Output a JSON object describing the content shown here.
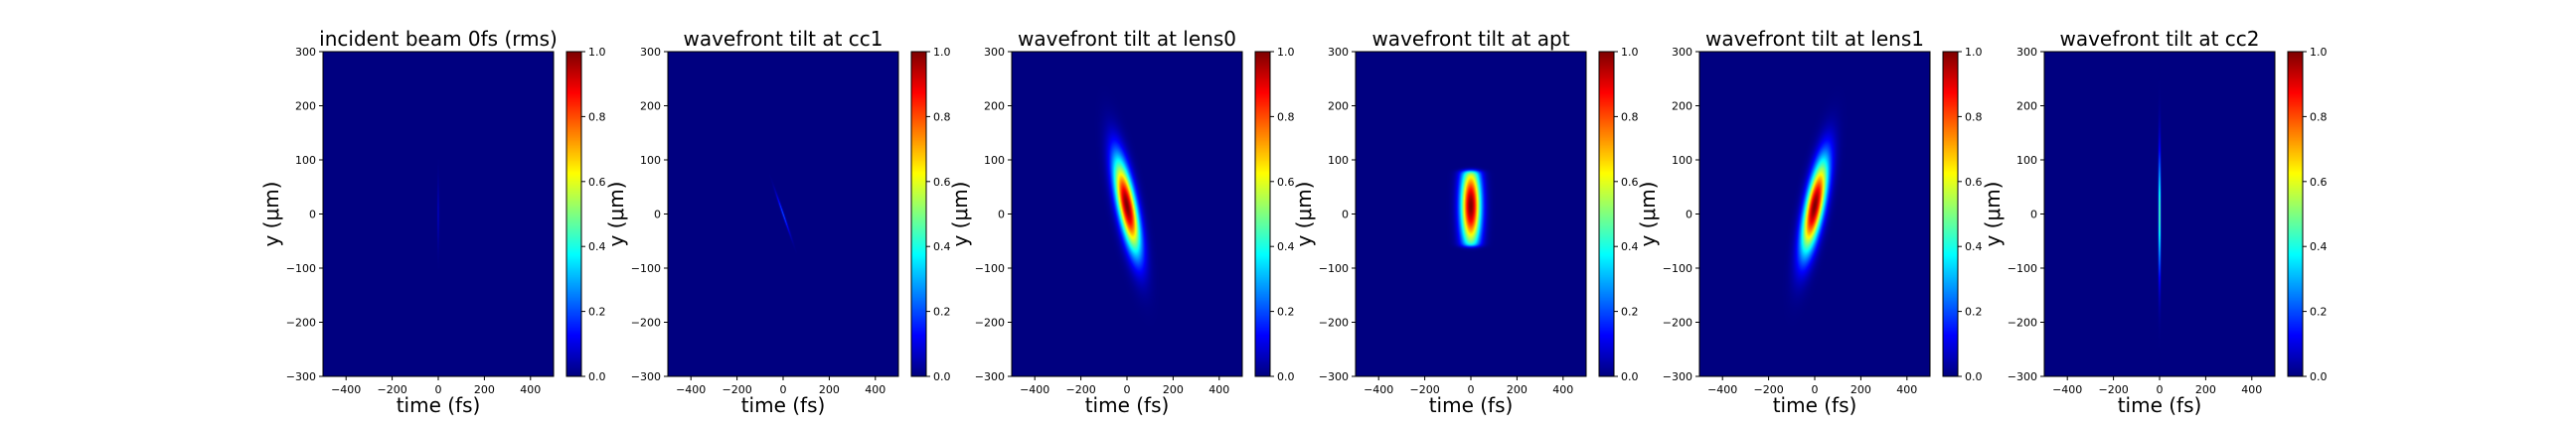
{
  "chart_data": [
    {
      "type": "heatmap",
      "title": "incident beam 0fs (rms)",
      "xlabel": "time (fs)",
      "ylabel": "y (μm)",
      "xlim": [
        -500,
        500
      ],
      "ylim": [
        -300,
        300
      ],
      "xticks": [
        -400,
        -200,
        0,
        200,
        400
      ],
      "yticks": [
        -300,
        -200,
        -100,
        0,
        100,
        200,
        300
      ],
      "colorbar": {
        "range": [
          0,
          1
        ],
        "ticks": [
          0.0,
          0.2,
          0.4,
          0.6,
          0.8,
          1.0
        ],
        "colormap": "jet"
      },
      "beam": {
        "center_t": 0,
        "center_y": 0,
        "sigma_t": 1.5,
        "sigma_y": 40,
        "tilt_fs_per_um": 0,
        "peak": 0.14
      }
    },
    {
      "type": "heatmap",
      "title": "wavefront tilt at cc1",
      "xlabel": "time (fs)",
      "ylabel": "y (μm)",
      "xlim": [
        -500,
        500
      ],
      "ylim": [
        -300,
        300
      ],
      "xticks": [
        -400,
        -200,
        0,
        200,
        400
      ],
      "yticks": [
        -300,
        -200,
        -100,
        0,
        100,
        200,
        300
      ],
      "colorbar": {
        "range": [
          0,
          1
        ],
        "ticks": [
          0.0,
          0.2,
          0.4,
          0.6,
          0.8,
          1.0
        ],
        "colormap": "jet"
      },
      "beam": {
        "center_t": 0,
        "center_y": 0,
        "sigma_t": 2.5,
        "sigma_y": 25,
        "tilt_fs_per_um": 0.8,
        "peak": 0.22
      }
    },
    {
      "type": "heatmap",
      "title": "wavefront tilt at lens0",
      "xlabel": "time (fs)",
      "ylabel": "y (μm)",
      "xlim": [
        -500,
        500
      ],
      "ylim": [
        -300,
        300
      ],
      "xticks": [
        -400,
        -200,
        0,
        200,
        400
      ],
      "yticks": [
        -300,
        -200,
        -100,
        0,
        100,
        200,
        300
      ],
      "colorbar": {
        "range": [
          0,
          1
        ],
        "ticks": [
          0.0,
          0.2,
          0.4,
          0.6,
          0.8,
          1.0
        ],
        "colormap": "jet"
      },
      "beam": {
        "center_t": 0,
        "center_y": 15,
        "sigma_t": 28,
        "sigma_y": 60,
        "tilt_fs_per_um": 0.45,
        "peak": 1.0
      }
    },
    {
      "type": "heatmap",
      "title": "wavefront tilt at apt",
      "xlabel": "time (fs)",
      "ylabel": "y (μm)",
      "xlim": [
        -500,
        500
      ],
      "ylim": [
        -300,
        300
      ],
      "xticks": [
        -400,
        -200,
        0,
        200,
        400
      ],
      "yticks": [
        -300,
        -200,
        -100,
        0,
        100,
        200,
        300
      ],
      "colorbar": {
        "range": [
          0,
          1
        ],
        "ticks": [
          0.0,
          0.2,
          0.4,
          0.6,
          0.8,
          1.0
        ],
        "colormap": "jet"
      },
      "beam": {
        "center_t": 0,
        "center_y": 15,
        "sigma_t": 30,
        "sigma_y": 55,
        "tilt_fs_per_um": 0,
        "peak": 1.0,
        "aperture_y": [
          -60,
          80
        ]
      }
    },
    {
      "type": "heatmap",
      "title": "wavefront tilt at lens1",
      "xlabel": "time (fs)",
      "ylabel": "y (μm)",
      "xlim": [
        -500,
        500
      ],
      "ylim": [
        -300,
        300
      ],
      "xticks": [
        -400,
        -200,
        0,
        200,
        400
      ],
      "yticks": [
        -300,
        -200,
        -100,
        0,
        100,
        200,
        300
      ],
      "colorbar": {
        "range": [
          0,
          1
        ],
        "ticks": [
          0.0,
          0.2,
          0.4,
          0.6,
          0.8,
          1.0
        ],
        "colormap": "jet"
      },
      "beam": {
        "center_t": 0,
        "center_y": 15,
        "sigma_t": 28,
        "sigma_y": 60,
        "tilt_fs_per_um": -0.45,
        "peak": 1.0
      }
    },
    {
      "type": "heatmap",
      "title": "wavefront tilt at cc2",
      "xlabel": "time (fs)",
      "ylabel": "y (μm)",
      "xlim": [
        -500,
        500
      ],
      "ylim": [
        -300,
        300
      ],
      "xticks": [
        -400,
        -200,
        0,
        200,
        400
      ],
      "yticks": [
        -300,
        -200,
        -100,
        0,
        100,
        200,
        300
      ],
      "colorbar": {
        "range": [
          0,
          1
        ],
        "ticks": [
          0.0,
          0.2,
          0.4,
          0.6,
          0.8,
          1.0
        ],
        "colormap": "jet"
      },
      "beam": {
        "center_t": 0,
        "center_y": 0,
        "sigma_t": 3,
        "sigma_y": 75,
        "tilt_fs_per_um": 0,
        "peak": 0.55
      }
    }
  ]
}
